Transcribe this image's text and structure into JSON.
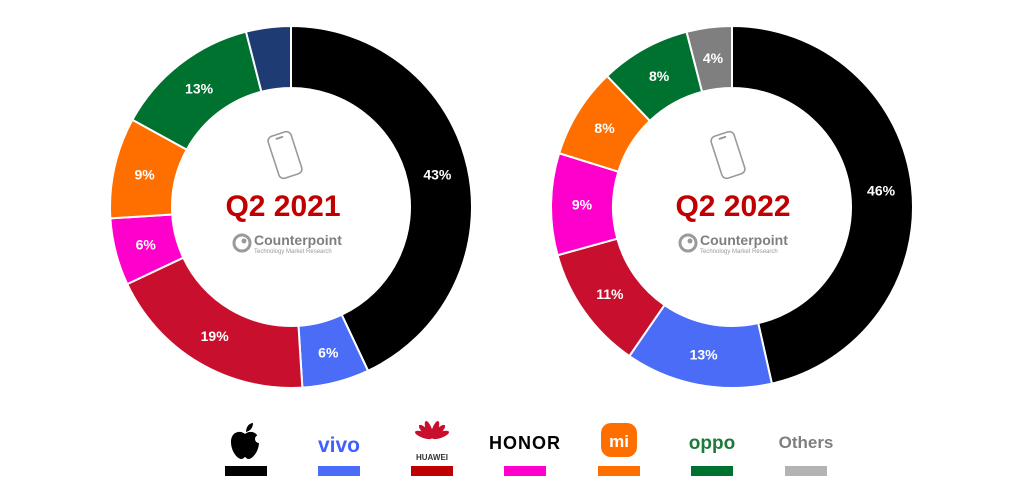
{
  "chart_data": [
    {
      "type": "pie",
      "title": "Q2 2021",
      "categories": [
        "Apple",
        "vivo",
        "HUAWEI",
        "HONOR",
        "Xiaomi",
        "OPPO",
        "Others"
      ],
      "values": [
        43,
        6,
        19,
        6,
        9,
        13,
        4
      ],
      "labels": [
        "43%",
        "6%",
        "19%",
        "6%",
        "9%",
        "13%",
        ""
      ],
      "colors": [
        "#000000",
        "#4a6cf7",
        "#c8102e",
        "#ff00cc",
        "#ff6f00",
        "#00722f",
        "#1f3b73"
      ],
      "start_angle_deg": 0,
      "direction": "clockwise"
    },
    {
      "type": "pie",
      "title": "Q2 2022",
      "categories": [
        "Apple",
        "vivo",
        "HUAWEI",
        "HONOR",
        "Xiaomi",
        "OPPO",
        "Others"
      ],
      "values": [
        46,
        13,
        11,
        9,
        8,
        8,
        4
      ],
      "labels": [
        "46%",
        "13%",
        "11%",
        "9%",
        "8%",
        "8%",
        "4%"
      ],
      "colors": [
        "#000000",
        "#4a6cf7",
        "#c8102e",
        "#ff00cc",
        "#ff6f00",
        "#00722f",
        "#7f7f7f"
      ],
      "start_angle_deg": 0,
      "direction": "clockwise"
    }
  ],
  "watermark": {
    "brand": "Counterpoint",
    "tagline": "Technology Market Research"
  },
  "legend": [
    {
      "key": "apple",
      "text": "",
      "color": "#000000",
      "text_color": "#000000",
      "icon": "apple-logo-icon"
    },
    {
      "key": "vivo",
      "text": "vivo",
      "color": "#4a6cf7",
      "text_color": "#415fff",
      "icon": ""
    },
    {
      "key": "huawei",
      "text": "HUAWEI",
      "color": "#c00000",
      "text_color": "#333333",
      "icon": "huawei-flower-icon"
    },
    {
      "key": "honor",
      "text": "HONOR",
      "color": "#ff00cc",
      "text_color": "#000000",
      "icon": ""
    },
    {
      "key": "xiaomi",
      "text": "mi",
      "color": "#ff6f00",
      "text_color": "#ffffff",
      "icon": "xiaomi-logo-icon"
    },
    {
      "key": "oppo",
      "text": "oppo",
      "color": "#00722f",
      "text_color": "#1d7a3c",
      "icon": ""
    },
    {
      "key": "others",
      "text": "Others",
      "color": "#b3b3b3",
      "text_color": "#7f7f7f",
      "icon": ""
    }
  ]
}
